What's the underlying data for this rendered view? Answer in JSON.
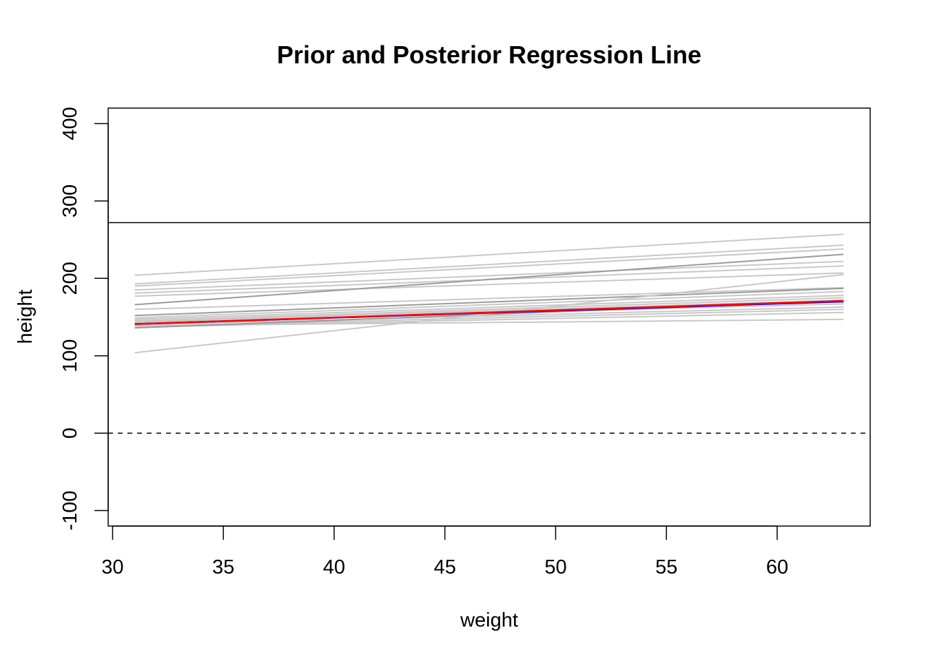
{
  "chart_data": {
    "type": "line",
    "title": "Prior and Posterior Regression Line",
    "xlabel": "weight",
    "ylabel": "height",
    "xlim": [
      29.8,
      64.2
    ],
    "ylim": [
      -120,
      420
    ],
    "x_ticks": [
      30,
      35,
      40,
      45,
      50,
      55,
      60
    ],
    "y_ticks": [
      -100,
      0,
      100,
      200,
      300,
      400
    ],
    "grid": false,
    "legend": "none",
    "reference_lines": [
      {
        "kind": "hline",
        "y": 0,
        "style": "dashed",
        "color": "#000000"
      },
      {
        "kind": "hline",
        "y": 272,
        "style": "solid",
        "color": "#000000"
      }
    ],
    "series": [
      {
        "role": "prior-sample",
        "color": "#c8c8c8",
        "x": [
          31,
          63
        ],
        "y": [
          204,
          257
        ]
      },
      {
        "role": "prior-sample",
        "color": "#c8c8c8",
        "x": [
          31,
          63
        ],
        "y": [
          193,
          243
        ]
      },
      {
        "role": "prior-sample",
        "color": "#c8c8c8",
        "x": [
          31,
          63
        ],
        "y": [
          190,
          238
        ]
      },
      {
        "role": "prior-sample",
        "color": "#c8c8c8",
        "x": [
          31,
          63
        ],
        "y": [
          185,
          222
        ]
      },
      {
        "role": "prior-sample",
        "color": "#c8c8c8",
        "x": [
          31,
          63
        ],
        "y": [
          181,
          216
        ]
      },
      {
        "role": "prior-sample",
        "color": "#c8c8c8",
        "x": [
          31,
          63
        ],
        "y": [
          177,
          207
        ]
      },
      {
        "role": "prior-sample",
        "color": "#9a9a9a",
        "x": [
          31,
          63
        ],
        "y": [
          166,
          231
        ]
      },
      {
        "role": "prior-sample",
        "color": "#c8c8c8",
        "x": [
          31,
          63
        ],
        "y": [
          160,
          188
        ]
      },
      {
        "role": "prior-sample",
        "color": "#9a9a9a",
        "x": [
          31,
          63
        ],
        "y": [
          152,
          187
        ]
      },
      {
        "role": "prior-sample",
        "color": "#c8c8c8",
        "x": [
          31,
          63
        ],
        "y": [
          149,
          183
        ]
      },
      {
        "role": "prior-sample",
        "color": "#c8c8c8",
        "x": [
          31,
          63
        ],
        "y": [
          147,
          178
        ]
      },
      {
        "role": "prior-sample",
        "color": "#c8c8c8",
        "x": [
          31,
          63
        ],
        "y": [
          145,
          175
        ]
      },
      {
        "role": "prior-sample",
        "color": "#c8c8c8",
        "x": [
          31,
          63
        ],
        "y": [
          144,
          172
        ]
      },
      {
        "role": "prior-sample",
        "color": "#c8c8c8",
        "x": [
          31,
          63
        ],
        "y": [
          143,
          167
        ]
      },
      {
        "role": "prior-sample",
        "color": "#c8c8c8",
        "x": [
          31,
          63
        ],
        "y": [
          140,
          163
        ]
      },
      {
        "role": "prior-sample",
        "color": "#c8c8c8",
        "x": [
          31,
          63
        ],
        "y": [
          138,
          160
        ]
      },
      {
        "role": "prior-sample",
        "color": "#c8c8c8",
        "x": [
          31,
          63
        ],
        "y": [
          137,
          156
        ]
      },
      {
        "role": "prior-sample",
        "color": "#c8c8c8",
        "x": [
          31,
          63
        ],
        "y": [
          139,
          147
        ]
      },
      {
        "role": "prior-sample",
        "color": "#9a9a9a",
        "x": [
          31,
          63
        ],
        "y": [
          136,
          171
        ]
      },
      {
        "role": "prior-sample",
        "color": "#c8c8c8",
        "x": [
          31,
          63
        ],
        "y": [
          104,
          205
        ]
      },
      {
        "role": "posterior-sample",
        "color": "#0000ff",
        "x": [
          31,
          63
        ],
        "y": [
          141,
          170
        ]
      },
      {
        "role": "posterior-mean",
        "color": "#ff0000",
        "x": [
          31,
          63
        ],
        "y": [
          141,
          171
        ]
      }
    ]
  }
}
